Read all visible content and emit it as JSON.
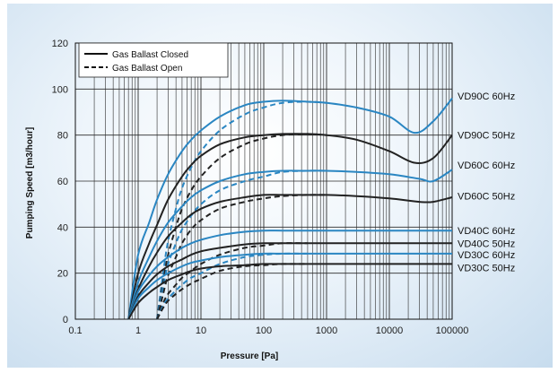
{
  "chart_data": {
    "type": "line",
    "xlabel": "Pressure [Pa]",
    "ylabel": "Pumping Speed [m3/hour]",
    "x_scale": "log",
    "xlim": [
      0.1,
      100000
    ],
    "ylim": [
      0,
      120
    ],
    "x_ticks": [
      "0.1",
      "1",
      "10",
      "100",
      "1000",
      "10000",
      "100000"
    ],
    "y_ticks": [
      "0",
      "20",
      "40",
      "60",
      "80",
      "100",
      "120"
    ],
    "grid": true,
    "legend_position": "top-left",
    "legend": [
      {
        "label": "Gas Ballast Closed",
        "style": "solid"
      },
      {
        "label": "Gas Ballast Open",
        "style": "dashed"
      }
    ],
    "series": [
      {
        "name": "VD90C 60Hz",
        "ballast": "closed",
        "color": "#2a86c2",
        "x": [
          0.7,
          1,
          1.5,
          2,
          3,
          5,
          7,
          10,
          20,
          50,
          100,
          200,
          500,
          1000,
          3000,
          10000,
          25000,
          50000,
          100000
        ],
        "y": [
          0,
          28,
          42,
          52,
          63,
          73,
          78,
          82,
          88,
          93,
          94.5,
          95,
          94.5,
          94,
          92,
          88,
          81,
          86,
          96
        ]
      },
      {
        "name": "VD90C 60Hz",
        "ballast": "open",
        "color": "#2a86c2",
        "x": [
          2,
          2.5,
          3,
          4,
          5,
          7,
          10,
          20,
          50,
          100,
          200,
          500,
          1000
        ],
        "y": [
          0,
          20,
          34,
          48,
          57,
          66,
          73,
          82,
          89,
          92,
          94,
          94.5,
          94
        ]
      },
      {
        "name": "VD90C 50Hz",
        "ballast": "closed",
        "color": "#222222",
        "x": [
          0.7,
          1,
          1.5,
          2,
          3,
          5,
          7,
          10,
          20,
          50,
          100,
          200,
          500,
          1000,
          3000,
          10000,
          25000,
          50000,
          100000
        ],
        "y": [
          0,
          20,
          33,
          41,
          52,
          62,
          67,
          71,
          76,
          79,
          80,
          80.5,
          80.5,
          80,
          78,
          73,
          68,
          70,
          80
        ]
      },
      {
        "name": "VD90C 50Hz",
        "ballast": "open",
        "color": "#222222",
        "x": [
          2,
          2.5,
          3,
          4,
          5,
          7,
          10,
          20,
          50,
          100,
          200,
          500,
          1000
        ],
        "y": [
          0,
          16,
          28,
          40,
          48,
          56,
          62,
          70,
          76,
          78.5,
          80,
          80.5,
          80
        ]
      },
      {
        "name": "VD60C 60Hz",
        "ballast": "closed",
        "color": "#2a86c2",
        "x": [
          0.7,
          1,
          1.5,
          2,
          3,
          5,
          7,
          10,
          20,
          50,
          100,
          200,
          500,
          1000,
          3000,
          10000,
          30000,
          50000,
          100000
        ],
        "y": [
          0,
          16,
          27,
          34,
          42,
          49,
          53,
          56,
          60,
          63,
          64,
          64.5,
          64.5,
          64.5,
          64,
          63,
          61,
          60,
          65
        ]
      },
      {
        "name": "VD60C 60Hz",
        "ballast": "open",
        "color": "#2a86c2",
        "x": [
          2,
          2.5,
          3,
          4,
          5,
          7,
          10,
          20,
          50,
          100,
          200,
          500,
          1000
        ],
        "y": [
          0,
          14,
          24,
          33,
          39,
          45,
          50,
          56,
          60,
          62,
          64,
          64.5,
          64.5
        ]
      },
      {
        "name": "VD60C 50Hz",
        "ballast": "closed",
        "color": "#222222",
        "x": [
          0.7,
          1,
          1.5,
          2,
          3,
          5,
          7,
          10,
          20,
          50,
          100,
          200,
          500,
          1000,
          3000,
          10000,
          30000,
          50000,
          100000
        ],
        "y": [
          0,
          13,
          23,
          29,
          36,
          42,
          45.5,
          48,
          51,
          53,
          54,
          54,
          54,
          54,
          53.5,
          52.5,
          51,
          51,
          53
        ]
      },
      {
        "name": "VD60C 50Hz",
        "ballast": "open",
        "color": "#222222",
        "x": [
          2,
          2.5,
          3,
          4,
          5,
          7,
          10,
          20,
          50,
          100,
          200,
          500,
          1000
        ],
        "y": [
          0,
          11,
          19,
          27,
          33,
          39,
          43,
          48,
          51,
          52.5,
          53.5,
          54,
          54
        ]
      },
      {
        "name": "VD40C 60Hz",
        "ballast": "closed",
        "color": "#2a86c2",
        "x": [
          0.7,
          1,
          1.5,
          2,
          3,
          5,
          7,
          10,
          20,
          50,
          100,
          200,
          500,
          1000,
          10000,
          100000
        ],
        "y": [
          0,
          12,
          19,
          23,
          27,
          31,
          33,
          34.5,
          36.5,
          38,
          38.5,
          38.5,
          38.5,
          38.5,
          38.5,
          38.5
        ]
      },
      {
        "name": "VD40C 50Hz",
        "ballast": "closed",
        "color": "#222222",
        "x": [
          0.7,
          1,
          1.5,
          2,
          3,
          5,
          7,
          10,
          20,
          50,
          100,
          200,
          500,
          1000,
          10000,
          100000
        ],
        "y": [
          0,
          10,
          16,
          19.5,
          23,
          26,
          28,
          29.5,
          31,
          32.5,
          33,
          33,
          33,
          33,
          33,
          33
        ]
      },
      {
        "name": "VD40C 50Hz",
        "ballast": "open",
        "color": "#222222",
        "x": [
          2,
          2.5,
          3,
          4,
          5,
          7,
          10,
          20,
          50,
          100,
          200,
          500
        ],
        "y": [
          0,
          7,
          11,
          15,
          18,
          21,
          24,
          28,
          31,
          32,
          33,
          33
        ]
      },
      {
        "name": "VD30C 60Hz",
        "ballast": "closed",
        "color": "#2a86c2",
        "x": [
          0.7,
          1,
          1.5,
          2,
          3,
          5,
          7,
          10,
          20,
          50,
          100,
          200,
          500,
          1000,
          10000,
          100000
        ],
        "y": [
          0,
          9,
          14,
          17,
          20,
          23,
          24.5,
          25.5,
          27,
          28,
          28.5,
          28.5,
          28.5,
          28.5,
          28.5,
          28.5
        ]
      },
      {
        "name": "VD30C 60Hz",
        "ballast": "open",
        "color": "#2a86c2",
        "x": [
          2,
          2.5,
          3,
          4,
          5,
          7,
          10,
          20,
          50,
          100,
          200,
          500
        ],
        "y": [
          0,
          6,
          9,
          12.5,
          15,
          18,
          20,
          24,
          27,
          28,
          28.5,
          28.5
        ]
      },
      {
        "name": "VD30C 50Hz",
        "ballast": "closed",
        "color": "#222222",
        "x": [
          0.7,
          1,
          1.5,
          2,
          3,
          5,
          7,
          10,
          20,
          50,
          100,
          200,
          500,
          1000,
          10000,
          100000
        ],
        "y": [
          0,
          7,
          11.5,
          14,
          17,
          19.5,
          21,
          22,
          23,
          23.5,
          24,
          24,
          24,
          24,
          24,
          24
        ]
      },
      {
        "name": "VD30C 50Hz",
        "ballast": "open",
        "color": "#222222",
        "x": [
          2,
          2.5,
          3,
          4,
          5,
          7,
          10,
          20,
          50,
          100,
          200,
          500
        ],
        "y": [
          0,
          5,
          8,
          11,
          13,
          15.5,
          17.5,
          21,
          23,
          23.5,
          24,
          24
        ]
      }
    ],
    "series_labels": [
      {
        "text": "VD90C  60Hz",
        "y": 97
      },
      {
        "text": "VD90C  50Hz",
        "y": 80
      },
      {
        "text": "VD60C  60Hz",
        "y": 67
      },
      {
        "text": "VD60C  50Hz",
        "y": 53.5
      },
      {
        "text": "VD40C  60Hz",
        "y": 38.5
      },
      {
        "text": "VD40C  50Hz",
        "y": 33
      },
      {
        "text": "VD30C  60Hz",
        "y": 28
      },
      {
        "text": "VD30C  50Hz",
        "y": 22.5
      }
    ]
  }
}
